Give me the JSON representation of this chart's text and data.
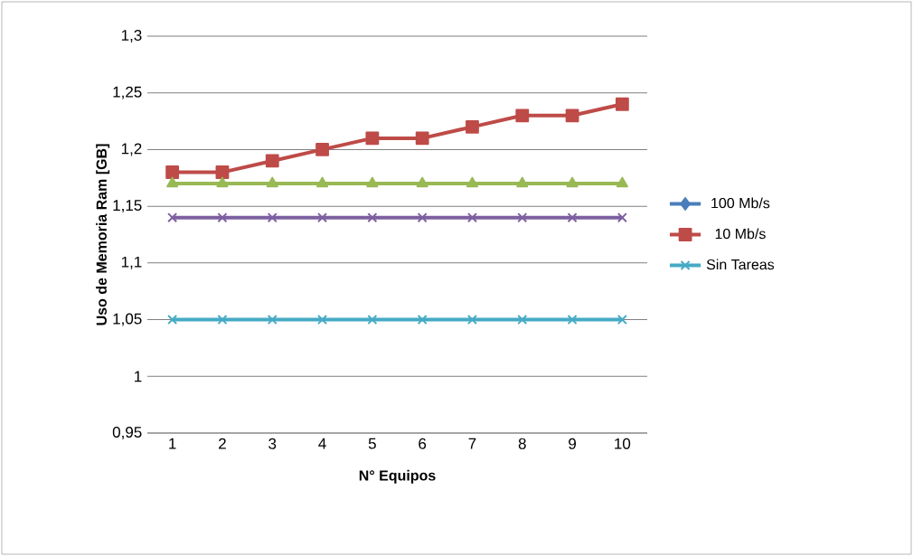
{
  "chart_data": {
    "type": "line",
    "xlabel": "N° Equipos",
    "ylabel": "Uso de Memoria Ram [GB]",
    "categories": [
      "1",
      "2",
      "3",
      "4",
      "5",
      "6",
      "7",
      "8",
      "9",
      "10"
    ],
    "series": [
      {
        "name": "100 Mb/s",
        "color": "#4a7ebb",
        "marker": "diamond",
        "values": [
          null,
          null,
          null,
          null,
          null,
          null,
          null,
          null,
          null,
          null
        ]
      },
      {
        "name": "10 Mb/s",
        "color": "#be4b48",
        "marker": "square",
        "values": [
          1.18,
          1.18,
          1.19,
          1.2,
          1.21,
          1.21,
          1.22,
          1.23,
          1.23,
          1.24
        ]
      },
      {
        "color": "#98b954",
        "marker": "triangle",
        "values": [
          1.17,
          1.17,
          1.17,
          1.17,
          1.17,
          1.17,
          1.17,
          1.17,
          1.17,
          1.17
        ]
      },
      {
        "color": "#7d60a0",
        "marker": "cross",
        "values": [
          1.14,
          1.14,
          1.14,
          1.14,
          1.14,
          1.14,
          1.14,
          1.14,
          1.14,
          1.14
        ]
      },
      {
        "name": "Sin Tareas",
        "color": "#46aac5",
        "marker": "cross",
        "values": [
          1.05,
          1.05,
          1.05,
          1.05,
          1.05,
          1.05,
          1.05,
          1.05,
          1.05,
          1.05
        ]
      }
    ],
    "ylim": [
      0.95,
      1.3
    ],
    "yticks": [
      {
        "value": 0.95,
        "label": "0,95"
      },
      {
        "value": 1,
        "label": "1"
      },
      {
        "value": 1.05,
        "label": "1,05"
      },
      {
        "value": 1.1,
        "label": "1,1"
      },
      {
        "value": 1.15,
        "label": "1,15"
      },
      {
        "value": 1.2,
        "label": "1,2"
      },
      {
        "value": 1.25,
        "label": "1,25"
      },
      {
        "value": 1.3,
        "label": "1,3"
      }
    ],
    "grid": "y",
    "legend": "right",
    "line_style": "solid"
  }
}
